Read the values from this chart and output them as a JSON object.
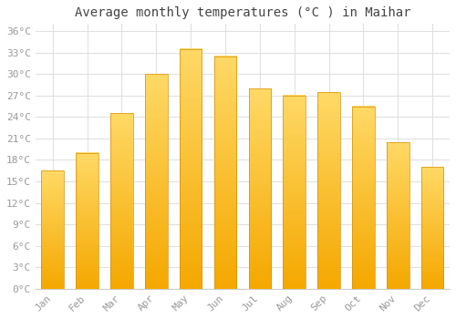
{
  "title": "Average monthly temperatures (°C ) in Maihar",
  "months": [
    "Jan",
    "Feb",
    "Mar",
    "Apr",
    "May",
    "Jun",
    "Jul",
    "Aug",
    "Sep",
    "Oct",
    "Nov",
    "Dec"
  ],
  "temperatures": [
    16.5,
    19.0,
    24.5,
    30.0,
    33.5,
    32.5,
    28.0,
    27.0,
    27.5,
    25.5,
    20.5,
    17.0
  ],
  "bar_color_top": "#FFD966",
  "bar_color_bottom": "#F5A800",
  "bar_edge_color": "#D4900A",
  "ylim": [
    0,
    37
  ],
  "yticks": [
    0,
    3,
    6,
    9,
    12,
    15,
    18,
    21,
    24,
    27,
    30,
    33,
    36
  ],
  "ytick_labels": [
    "0°C",
    "3°C",
    "6°C",
    "9°C",
    "12°C",
    "15°C",
    "18°C",
    "21°C",
    "24°C",
    "27°C",
    "30°C",
    "33°C",
    "36°C"
  ],
  "background_color": "#FFFFFF",
  "grid_color": "#E0E0E0",
  "tick_color": "#999999",
  "title_font_color": "#444444",
  "font_family": "monospace",
  "title_fontsize": 10,
  "tick_fontsize": 8,
  "bar_width": 0.65
}
